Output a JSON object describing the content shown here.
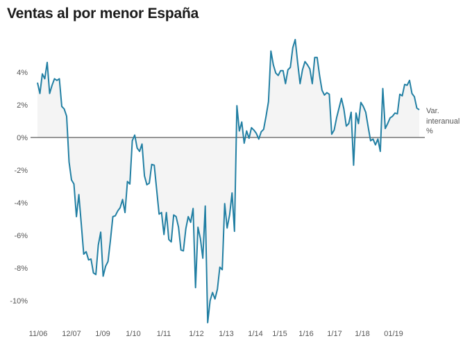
{
  "chart_data": {
    "type": "area",
    "title": "Ventas al por menor España",
    "series_label": [
      "Var.",
      "interanual",
      "%"
    ],
    "xlabel": "",
    "ylabel": "Var. interanual %",
    "frequency": "monthly",
    "ylim": [
      -11.5,
      6.5
    ],
    "yticks": [
      {
        "value": 4,
        "label": "4%"
      },
      {
        "value": 2,
        "label": "2%"
      },
      {
        "value": 0,
        "label": "0%"
      },
      {
        "value": -2,
        "label": "-2%"
      },
      {
        "value": -4,
        "label": "-4%"
      },
      {
        "value": -6,
        "label": "-6%"
      },
      {
        "value": -8,
        "label": "-8%"
      },
      {
        "value": -10,
        "label": "-10%"
      }
    ],
    "xticks": [
      "11/06",
      "12/07",
      "1/09",
      "1/10",
      "1/11",
      "1/12",
      "1/13",
      "1/14",
      "1/15",
      "1/16",
      "1/17",
      "1/18",
      "01/19"
    ],
    "values": [
      3.36,
      2.7,
      3.9,
      3.6,
      4.6,
      2.7,
      3.2,
      3.6,
      3.5,
      3.6,
      1.9,
      1.75,
      1.3,
      -1.5,
      -2.6,
      -2.85,
      -4.85,
      -3.5,
      -5.3,
      -7.15,
      -7.0,
      -7.5,
      -7.45,
      -8.3,
      -8.4,
      -6.6,
      -5.8,
      -8.5,
      -7.9,
      -7.6,
      -6.3,
      -4.85,
      -4.8,
      -4.5,
      -4.3,
      -3.8,
      -4.6,
      -2.7,
      -2.85,
      -0.2,
      0.15,
      -0.65,
      -0.85,
      -0.4,
      -2.35,
      -2.9,
      -2.8,
      -1.65,
      -1.7,
      -3.2,
      -4.7,
      -4.6,
      -5.95,
      -4.6,
      -6.25,
      -6.4,
      -4.75,
      -4.85,
      -5.5,
      -6.9,
      -6.95,
      -5.6,
      -4.85,
      -5.2,
      -4.35,
      -9.2,
      -5.5,
      -6.2,
      -7.4,
      -4.2,
      -11.35,
      -10.0,
      -9.5,
      -9.9,
      -9.3,
      -7.95,
      -8.1,
      -4.05,
      -5.55,
      -4.75,
      -3.4,
      -5.75,
      1.95,
      0.4,
      0.95,
      -0.35,
      0.4,
      -0.05,
      0.6,
      0.45,
      0.25,
      -0.1,
      0.35,
      0.5,
      1.3,
      2.2,
      5.3,
      4.45,
      3.95,
      3.8,
      4.1,
      4.1,
      3.3,
      4.15,
      4.3,
      5.5,
      6.0,
      4.6,
      3.3,
      4.15,
      4.65,
      4.45,
      4.2,
      3.3,
      4.9,
      4.9,
      3.8,
      2.9,
      2.6,
      2.75,
      2.65,
      0.2,
      0.45,
      1.2,
      1.8,
      2.4,
      1.75,
      0.7,
      0.85,
      1.55,
      -1.7,
      1.5,
      0.85,
      2.15,
      1.9,
      1.55,
      0.65,
      -0.2,
      -0.1,
      -0.45,
      -0.1,
      -0.85,
      3.0,
      0.55,
      0.85,
      1.2,
      1.3,
      1.5,
      1.45,
      2.65,
      2.55,
      3.25,
      3.2,
      3.5,
      2.7,
      2.5,
      1.8,
      1.7
    ],
    "colors": {
      "line": "#217fa3",
      "area": "#f4f4f4",
      "zero": "#333333"
    },
    "grid": false,
    "legend": "none"
  }
}
